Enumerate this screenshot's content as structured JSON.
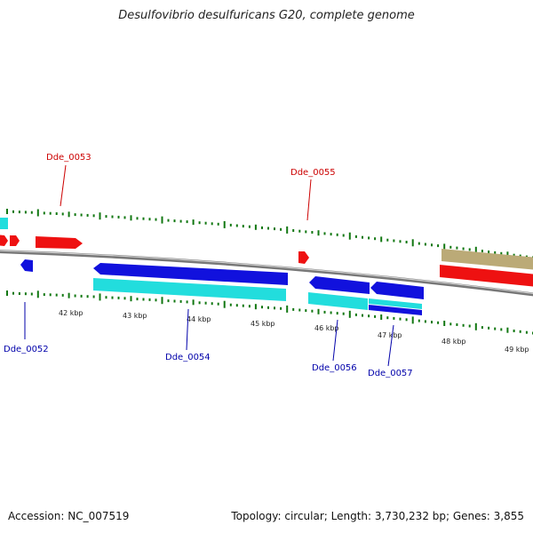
{
  "title": "Desulfovibrio desulfuricans G20, complete genome",
  "footer": {
    "accession": "Accession: NC_007519",
    "summary": "Topology: circular; Length: 3,730,232 bp; Genes: 3,855"
  },
  "colors": {
    "forward_gene": "#ee1111",
    "reverse_gene": "#1111dd",
    "forward_cds": "#bbaa77",
    "reverse_cds": "#22dddd",
    "ticks": "#117711",
    "backbone": "#888888",
    "label_forward": "#cc0000",
    "label_reverse": "#0000aa"
  },
  "ticks": [
    {
      "label": "42 kbp"
    },
    {
      "label": "43 kbp"
    },
    {
      "label": "44 kbp"
    },
    {
      "label": "45 kbp"
    },
    {
      "label": "46 kbp"
    },
    {
      "label": "47 kbp"
    },
    {
      "label": "48 kbp"
    },
    {
      "label": "49 kbp"
    }
  ],
  "gene_labels": [
    {
      "label": "Dde_0052",
      "strand": "reverse"
    },
    {
      "label": "Dde_0053",
      "strand": "forward"
    },
    {
      "label": "Dde_0054",
      "strand": "reverse"
    },
    {
      "label": "Dde_0055",
      "strand": "forward"
    },
    {
      "label": "Dde_0056",
      "strand": "reverse"
    },
    {
      "label": "Dde_0057",
      "strand": "reverse"
    }
  ]
}
